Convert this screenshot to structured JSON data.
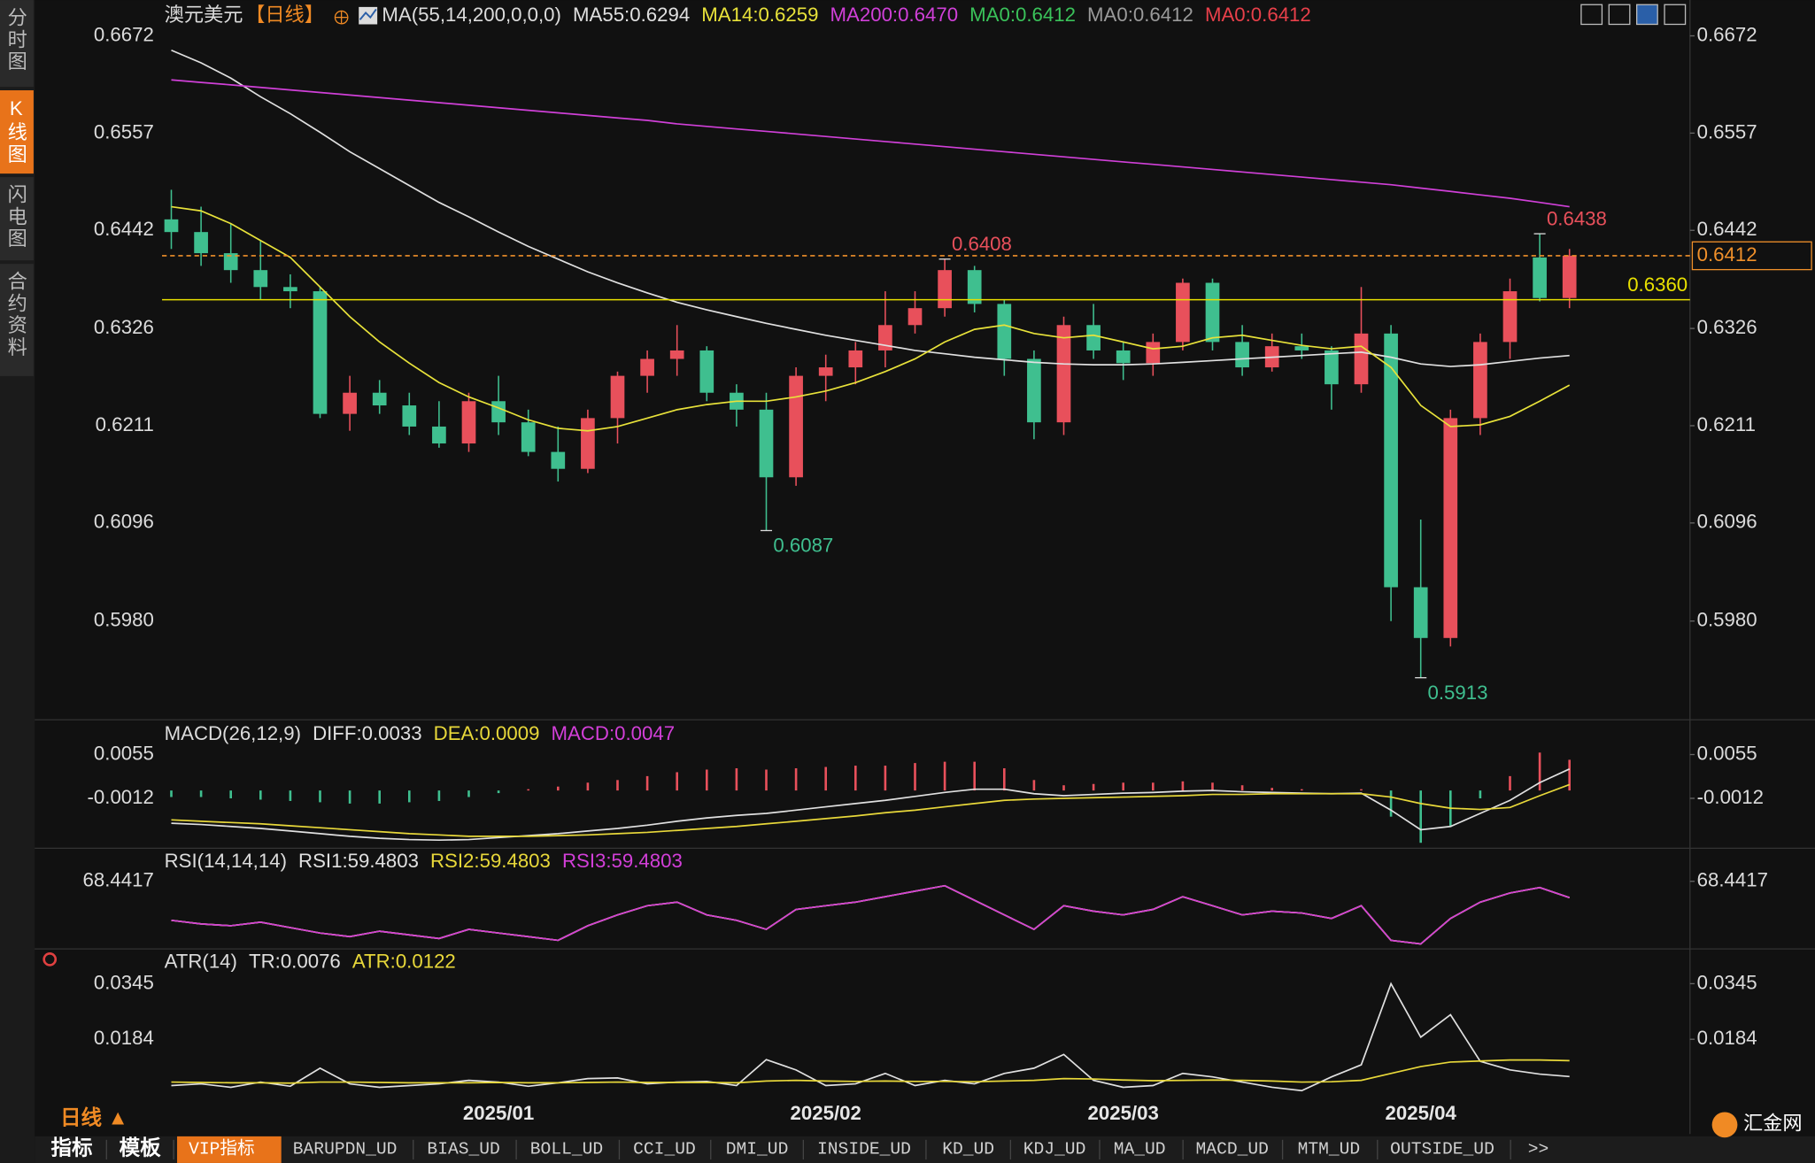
{
  "chart_data": [
    {
      "type": "candlestick",
      "title": "澳元美元",
      "period": "【日线】",
      "period_color": "#f08a24",
      "indicator": "MA(55,14,200,0,0,0)",
      "up_color": "#e8505b",
      "down_color": "#3fbf8f",
      "categories": [
        null,
        null,
        null,
        null,
        null,
        null,
        null,
        null,
        null,
        null,
        null,
        "2025/01",
        null,
        null,
        null,
        null,
        null,
        null,
        null,
        null,
        null,
        null,
        "2025/02",
        null,
        null,
        null,
        null,
        null,
        null,
        null,
        null,
        null,
        "2025/03",
        null,
        null,
        null,
        null,
        null,
        null,
        null,
        null,
        null,
        "2025/04",
        null,
        null,
        null,
        null,
        null
      ],
      "open": [
        0.6455,
        0.644,
        0.6415,
        0.6395,
        0.6375,
        0.637,
        0.6225,
        0.625,
        0.6235,
        0.621,
        0.619,
        0.624,
        0.6215,
        0.618,
        0.616,
        0.622,
        0.627,
        0.629,
        0.63,
        0.625,
        0.623,
        0.615,
        0.627,
        0.628,
        0.63,
        0.633,
        0.635,
        0.6395,
        0.6355,
        0.629,
        0.6215,
        0.633,
        0.63,
        0.6285,
        0.631,
        0.638,
        0.631,
        0.628,
        0.6305,
        0.63,
        0.626,
        0.632,
        0.602,
        0.596,
        0.622,
        0.631,
        0.641,
        0.6362
      ],
      "high": [
        0.649,
        0.647,
        0.645,
        0.643,
        0.639,
        0.6375,
        0.627,
        0.6265,
        0.625,
        0.624,
        0.625,
        0.627,
        0.623,
        0.621,
        0.623,
        0.6275,
        0.63,
        0.633,
        0.6305,
        0.626,
        0.625,
        0.628,
        0.6295,
        0.631,
        0.637,
        0.637,
        0.6408,
        0.64,
        0.636,
        0.63,
        0.634,
        0.6355,
        0.631,
        0.632,
        0.6385,
        0.6385,
        0.633,
        0.632,
        0.632,
        0.6305,
        0.6375,
        0.633,
        0.61,
        0.623,
        0.632,
        0.6385,
        0.6438,
        0.642
      ],
      "low": [
        0.642,
        0.64,
        0.638,
        0.636,
        0.635,
        0.622,
        0.6205,
        0.6225,
        0.62,
        0.6185,
        0.618,
        0.62,
        0.6175,
        0.6145,
        0.6155,
        0.619,
        0.625,
        0.627,
        0.624,
        0.621,
        0.6087,
        0.614,
        0.624,
        0.626,
        0.628,
        0.632,
        0.634,
        0.6345,
        0.627,
        0.6195,
        0.62,
        0.629,
        0.6265,
        0.627,
        0.63,
        0.63,
        0.627,
        0.6275,
        0.629,
        0.623,
        0.625,
        0.598,
        0.5913,
        0.595,
        0.62,
        0.629,
        0.6358,
        0.635
      ],
      "close": [
        0.644,
        0.6415,
        0.6395,
        0.6375,
        0.637,
        0.6225,
        0.625,
        0.6235,
        0.621,
        0.619,
        0.624,
        0.6215,
        0.618,
        0.616,
        0.622,
        0.627,
        0.629,
        0.63,
        0.625,
        0.623,
        0.615,
        0.627,
        0.628,
        0.63,
        0.633,
        0.635,
        0.6395,
        0.6355,
        0.629,
        0.6215,
        0.633,
        0.63,
        0.6285,
        0.631,
        0.638,
        0.631,
        0.628,
        0.6305,
        0.63,
        0.626,
        0.632,
        0.602,
        0.596,
        0.622,
        0.631,
        0.637,
        0.6362,
        0.6412
      ],
      "series": [
        {
          "name": "MA55:0.6294",
          "color": "#e0e0e0",
          "values": [
            0.6655,
            0.664,
            0.6622,
            0.66,
            0.658,
            0.6558,
            0.6535,
            0.6515,
            0.6495,
            0.6475,
            0.6458,
            0.644,
            0.6423,
            0.6408,
            0.6393,
            0.638,
            0.6368,
            0.6357,
            0.6348,
            0.634,
            0.6332,
            0.6325,
            0.6318,
            0.6312,
            0.6306,
            0.63,
            0.6296,
            0.6292,
            0.6289,
            0.6286,
            0.6284,
            0.6283,
            0.6283,
            0.6284,
            0.6286,
            0.6288,
            0.629,
            0.6292,
            0.6294,
            0.6296,
            0.6298,
            0.6292,
            0.6284,
            0.6281,
            0.6283,
            0.6287,
            0.6291,
            0.6294
          ]
        },
        {
          "name": "MA14:0.6259",
          "color": "#e8e23a",
          "values": [
            0.647,
            0.6465,
            0.645,
            0.643,
            0.641,
            0.6375,
            0.634,
            0.631,
            0.6285,
            0.6262,
            0.6245,
            0.6232,
            0.6218,
            0.6208,
            0.6205,
            0.621,
            0.622,
            0.623,
            0.6236,
            0.624,
            0.624,
            0.6245,
            0.6252,
            0.6262,
            0.6275,
            0.629,
            0.631,
            0.6325,
            0.633,
            0.632,
            0.6315,
            0.6318,
            0.631,
            0.6302,
            0.6305,
            0.6315,
            0.6318,
            0.6312,
            0.6306,
            0.6302,
            0.6305,
            0.628,
            0.6235,
            0.621,
            0.6212,
            0.6222,
            0.624,
            0.6259
          ]
        },
        {
          "name": "MA200:0.6470",
          "color": "#d040d8",
          "values": [
            0.662,
            0.6617,
            0.6614,
            0.6611,
            0.6608,
            0.6605,
            0.6602,
            0.6599,
            0.6596,
            0.6593,
            0.659,
            0.6587,
            0.6584,
            0.6581,
            0.6578,
            0.6575,
            0.6572,
            0.6568,
            0.6565,
            0.6562,
            0.6559,
            0.6556,
            0.6553,
            0.655,
            0.6547,
            0.6544,
            0.6541,
            0.6538,
            0.6535,
            0.6532,
            0.6529,
            0.6526,
            0.6523,
            0.652,
            0.6517,
            0.6514,
            0.6511,
            0.6508,
            0.6505,
            0.6502,
            0.6499,
            0.6496,
            0.6492,
            0.6488,
            0.6484,
            0.648,
            0.6475,
            0.647
          ]
        }
      ],
      "legend": [
        {
          "name": "MA0:0.6412",
          "color": "#3ac25a"
        },
        {
          "name": "MA0:0.6412",
          "color": "#9a9a9a"
        },
        {
          "name": "MA0:0.6412",
          "color": "#e8404a"
        }
      ],
      "price_lines": [
        {
          "value": 0.636,
          "label": "0.6360",
          "color": "#e8e000",
          "style": "solid"
        },
        {
          "value": 0.6412,
          "label": "0.6412",
          "color": "#f0902a",
          "style": "dashed"
        }
      ],
      "high_marks": [
        0.6438,
        0.6408
      ],
      "low_marks": [
        0.6087,
        0.5913
      ],
      "ylim": [
        0.5866,
        0.6687
      ],
      "yticks": [
        0.6672,
        0.6557,
        0.6442,
        0.6326,
        0.6211,
        0.6096,
        {
          "value": 0.598,
          "label": "0.5980"
        }
      ]
    },
    {
      "type": "macd",
      "title": "MACD(26,12,9)",
      "up_color": "#e8505b",
      "down_color": "#3fbf8f",
      "series": [
        {
          "name": "DIFF:0.0033",
          "color": "#e0e0e0",
          "values": [
            -0.005,
            -0.0052,
            -0.0055,
            -0.0058,
            -0.0062,
            -0.0066,
            -0.007,
            -0.0073,
            -0.0075,
            -0.0076,
            -0.0075,
            -0.0072,
            -0.0069,
            -0.0066,
            -0.0062,
            -0.0058,
            -0.0053,
            -0.0047,
            -0.0042,
            -0.0038,
            -0.0035,
            -0.003,
            -0.0025,
            -0.002,
            -0.0015,
            -0.0009,
            -0.0003,
            0.0002,
            0.0002,
            -0.0005,
            -0.0008,
            -0.0006,
            -0.0004,
            -0.0003,
            -0.0001,
            0.0,
            -0.0002,
            -0.0003,
            -0.0004,
            -0.0005,
            -0.0004,
            -0.003,
            -0.006,
            -0.0055,
            -0.0035,
            -0.0015,
            0.0012,
            0.0033
          ]
        },
        {
          "name": "DEA:0.0009",
          "color": "#e8d83a",
          "values": [
            -0.0045,
            -0.0047,
            -0.0049,
            -0.0051,
            -0.0054,
            -0.0057,
            -0.006,
            -0.0063,
            -0.0066,
            -0.0068,
            -0.007,
            -0.007,
            -0.007,
            -0.0069,
            -0.0068,
            -0.0066,
            -0.0064,
            -0.0061,
            -0.0058,
            -0.0055,
            -0.0051,
            -0.0047,
            -0.0043,
            -0.0039,
            -0.0034,
            -0.003,
            -0.0025,
            -0.002,
            -0.0015,
            -0.0013,
            -0.0012,
            -0.0011,
            -0.001,
            -0.0009,
            -0.0008,
            -0.0006,
            -0.0006,
            -0.0005,
            -0.0005,
            -0.0005,
            -0.0005,
            -0.001,
            -0.002,
            -0.0027,
            -0.0029,
            -0.0026,
            -0.0008,
            0.0009
          ]
        },
        {
          "name": "MACD:0.0047",
          "color": "#d23fd8",
          "style": "histogram",
          "values": [
            -0.001,
            -0.001,
            -0.0012,
            -0.0014,
            -0.0016,
            -0.0018,
            -0.002,
            -0.002,
            -0.0018,
            -0.0016,
            -0.001,
            -0.0004,
            0.0002,
            0.0006,
            0.0012,
            0.0016,
            0.0022,
            0.0028,
            0.0032,
            0.0034,
            0.0032,
            0.0034,
            0.0036,
            0.0038,
            0.0038,
            0.0042,
            0.0044,
            0.0044,
            0.0034,
            0.0016,
            0.0008,
            0.001,
            0.0012,
            0.0012,
            0.0014,
            0.0012,
            0.0008,
            0.0004,
            0.0002,
            0.0,
            0.0002,
            -0.004,
            -0.008,
            -0.0056,
            -0.0012,
            0.0022,
            0.0058,
            0.0047
          ]
        }
      ],
      "ylim": [
        -0.0083,
        0.0071
      ],
      "yticks": [
        0.0055,
        -0.0012
      ]
    },
    {
      "type": "line",
      "title": "RSI(14,14,14)",
      "series": [
        {
          "name": "RSI1:59.4803",
          "color": "#e0e0e0",
          "values": [
            47,
            45,
            44,
            46,
            43,
            40,
            38,
            41,
            39,
            37,
            42,
            40,
            38,
            36,
            44,
            50,
            55,
            57,
            50,
            47,
            42,
            53,
            55,
            57,
            60,
            63,
            66,
            58,
            50,
            42,
            55,
            52,
            50,
            53,
            60,
            55,
            50,
            52,
            51,
            48,
            55,
            36,
            34,
            48,
            57,
            62,
            65,
            59.4803
          ]
        },
        {
          "name": "RSI2:59.4803",
          "color": "#e8d83a",
          "values": [
            47,
            45,
            44,
            46,
            43,
            40,
            38,
            41,
            39,
            37,
            42,
            40,
            38,
            36,
            44,
            50,
            55,
            57,
            50,
            47,
            42,
            53,
            55,
            57,
            60,
            63,
            66,
            58,
            50,
            42,
            55,
            52,
            50,
            53,
            60,
            55,
            50,
            52,
            51,
            48,
            55,
            36,
            34,
            48,
            57,
            62,
            65,
            59.4803
          ]
        },
        {
          "name": "RSI3:59.4803",
          "color": "#d23fd8",
          "values": [
            47,
            45,
            44,
            46,
            43,
            40,
            38,
            41,
            39,
            37,
            42,
            40,
            38,
            36,
            44,
            50,
            55,
            57,
            50,
            47,
            42,
            53,
            55,
            57,
            60,
            63,
            66,
            58,
            50,
            42,
            55,
            52,
            50,
            53,
            60,
            55,
            50,
            52,
            51,
            48,
            55,
            36,
            34,
            48,
            57,
            62,
            65,
            59.4803
          ]
        }
      ],
      "ylim": [
        30,
        72
      ],
      "yticks": [
        68.4417
      ]
    },
    {
      "type": "line",
      "title": "ATR(14)",
      "series": [
        {
          "name": "TR:0.0076",
          "color": "#e0e0e0",
          "values": [
            0.005,
            0.0055,
            0.0045,
            0.006,
            0.0048,
            0.01,
            0.0055,
            0.0045,
            0.005,
            0.0055,
            0.0065,
            0.006,
            0.0048,
            0.0058,
            0.007,
            0.0072,
            0.0055,
            0.006,
            0.0062,
            0.005,
            0.0125,
            0.0095,
            0.005,
            0.0055,
            0.0085,
            0.005,
            0.0065,
            0.0055,
            0.0085,
            0.01,
            0.014,
            0.0065,
            0.0045,
            0.005,
            0.0085,
            0.0075,
            0.006,
            0.0045,
            0.0035,
            0.0075,
            0.011,
            0.0345,
            0.019,
            0.0255,
            0.012,
            0.0095,
            0.0083,
            0.0076
          ]
        },
        {
          "name": "ATR:0.0122",
          "color": "#e8d83a",
          "values": [
            0.006,
            0.0059,
            0.0058,
            0.0058,
            0.0057,
            0.006,
            0.006,
            0.0059,
            0.0058,
            0.0058,
            0.0058,
            0.0059,
            0.0058,
            0.0058,
            0.0059,
            0.006,
            0.0059,
            0.0059,
            0.0059,
            0.0058,
            0.0063,
            0.0065,
            0.0063,
            0.0062,
            0.0063,
            0.0062,
            0.0062,
            0.0061,
            0.0063,
            0.0065,
            0.007,
            0.0069,
            0.0066,
            0.0064,
            0.0065,
            0.0066,
            0.0065,
            0.0063,
            0.006,
            0.0061,
            0.0065,
            0.0085,
            0.0105,
            0.0118,
            0.0121,
            0.0124,
            0.0124,
            0.0122
          ]
        }
      ],
      "ylim": [
        0.001,
        0.0372
      ],
      "yticks": [
        0.0345,
        0.0184
      ]
    }
  ],
  "ui": {
    "sidebar_tabs": [
      "分时图",
      "K线图",
      "闪电图",
      "合约资料"
    ],
    "period_label": "日线 ▲",
    "bottom_tabs": [
      "指标",
      "模板",
      "VIP指标",
      "BARUPDN_UD",
      "BIAS_UD",
      "BOLL_UD",
      "CCI_UD",
      "DMI_UD",
      "INSIDE_UD",
      "KD_UD",
      "KDJ_UD",
      "MA_UD",
      "MACD_UD",
      "MTM_UD",
      "OUTSIDE_UD",
      ">>"
    ],
    "logo": "汇金网"
  }
}
